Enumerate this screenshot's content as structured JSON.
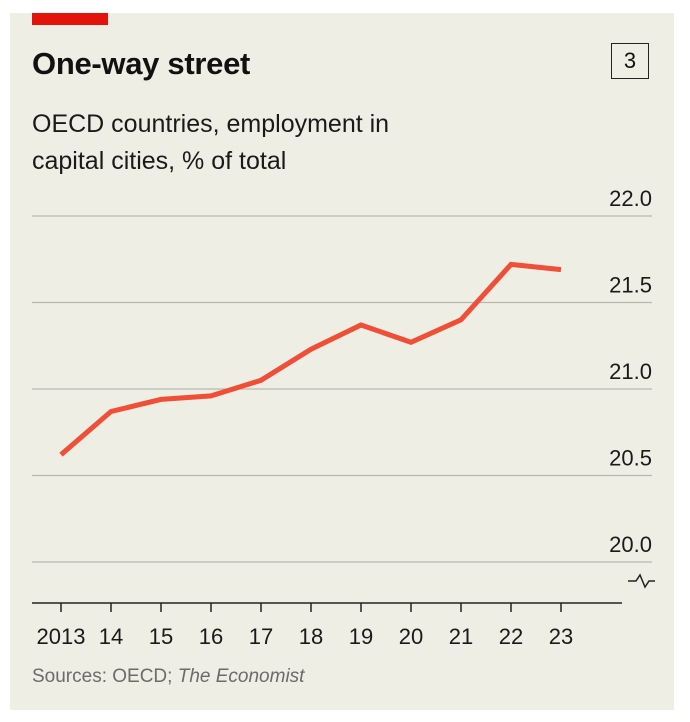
{
  "header": {
    "title": "One-way street",
    "chart_number": "3",
    "subtitle": "OECD countries, employment in capital cities, % of total"
  },
  "footer": {
    "sources_prefix": "Sources: OECD; ",
    "sources_italic": "The Economist"
  },
  "colors": {
    "background": "#efeee4",
    "accent": "#e3120b",
    "line": "#f04e37",
    "grid": "#b8b8b0"
  },
  "chart_data": {
    "type": "line",
    "title": "One-way street",
    "subtitle": "OECD countries, employment in capital cities, % of total",
    "xlabel": "",
    "ylabel": "",
    "x_tick_labels": [
      "2013",
      "14",
      "15",
      "16",
      "17",
      "18",
      "19",
      "20",
      "21",
      "22",
      "23"
    ],
    "y_tick_labels": [
      "22.0",
      "21.5",
      "21.0",
      "20.5",
      "20.0"
    ],
    "ylim": [
      20.0,
      22.0
    ],
    "y_axis_position": "right",
    "y_axis_break": true,
    "grid": true,
    "series": [
      {
        "x": [
          2013,
          2014,
          2015,
          2016,
          2017,
          2018,
          2019,
          2020,
          2021,
          2022,
          2023
        ],
        "values": [
          20.62,
          20.87,
          20.94,
          20.96,
          21.05,
          21.23,
          21.37,
          21.27,
          21.4,
          21.72,
          21.69
        ]
      }
    ]
  }
}
